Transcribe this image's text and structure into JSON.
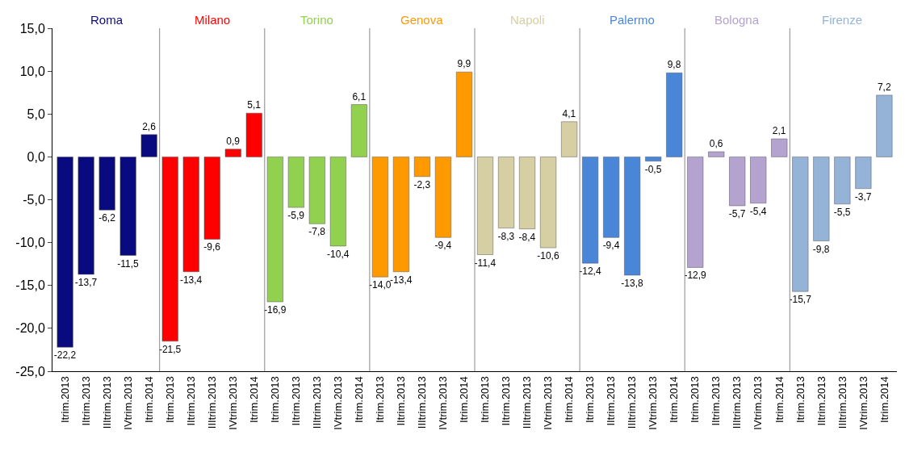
{
  "chart_data": {
    "type": "bar",
    "categories": [
      "Itrim.2013",
      "IItrim.2013",
      "IIItrim.2013",
      "IVtrim.2013",
      "Itrim.2014",
      "Itrim.2013",
      "IItrim.2013",
      "IIItrim.2013",
      "IVtrim.2013",
      "Itrim.2014",
      "Itrim.2013",
      "IItrim.2013",
      "IIItrim.2013",
      "IVtrim.2013",
      "Itrim.2014",
      "Itrim.2013",
      "IItrim.2013",
      "IIItrim.2013",
      "IVtrim.2013",
      "Itrim.2014",
      "Itrim.2013",
      "IItrim.2013",
      "IIItrim.2013",
      "IVtrim.2013",
      "Itrim.2014",
      "Itrim.2013",
      "IItrim.2013",
      "IIItrim.2013",
      "IVtrim.2013",
      "Itrim.2014",
      "Itrim.2013",
      "IItrim.2013",
      "IIItrim.2013",
      "IVtrim.2013",
      "Itrim.2014",
      "Itrim.2013",
      "IItrim.2013",
      "IIItrim.2013",
      "IVtrim.2013",
      "Itrim.2014"
    ],
    "series": [
      {
        "name": "Roma",
        "color": "#0a0a80",
        "values": [
          -22.2,
          -13.7,
          -6.2,
          -11.5,
          2.6,
          null,
          null,
          null,
          null,
          null,
          null,
          null,
          null,
          null,
          null,
          null,
          null,
          null,
          null,
          null,
          null,
          null,
          null,
          null,
          null,
          null,
          null,
          null,
          null,
          null,
          null,
          null,
          null,
          null,
          null,
          null,
          null,
          null,
          null,
          null
        ],
        "value_labels": [
          "-22,2",
          "-13,7",
          "-6,2",
          "-11,5",
          "2,6",
          null,
          null,
          null,
          null,
          null,
          null,
          null,
          null,
          null,
          null,
          null,
          null,
          null,
          null,
          null,
          null,
          null,
          null,
          null,
          null,
          null,
          null,
          null,
          null,
          null,
          null,
          null,
          null,
          null,
          null,
          null,
          null,
          null,
          null,
          null
        ]
      },
      {
        "name": "Milano",
        "color": "#ff0000",
        "values": [
          null,
          null,
          null,
          null,
          null,
          -21.5,
          -13.4,
          -9.6,
          0.9,
          5.1,
          null,
          null,
          null,
          null,
          null,
          null,
          null,
          null,
          null,
          null,
          null,
          null,
          null,
          null,
          null,
          null,
          null,
          null,
          null,
          null,
          null,
          null,
          null,
          null,
          null,
          null,
          null,
          null,
          null,
          null
        ],
        "value_labels": [
          null,
          null,
          null,
          null,
          null,
          "-21,5",
          "-13,4",
          "-9,6",
          "0,9",
          "5,1",
          null,
          null,
          null,
          null,
          null,
          null,
          null,
          null,
          null,
          null,
          null,
          null,
          null,
          null,
          null,
          null,
          null,
          null,
          null,
          null,
          null,
          null,
          null,
          null,
          null,
          null,
          null,
          null,
          null,
          null
        ]
      },
      {
        "name": "Torino",
        "color": "#92d050",
        "values": [
          null,
          null,
          null,
          null,
          null,
          null,
          null,
          null,
          null,
          null,
          -16.9,
          -5.9,
          -7.8,
          -10.4,
          6.1,
          null,
          null,
          null,
          null,
          null,
          null,
          null,
          null,
          null,
          null,
          null,
          null,
          null,
          null,
          null,
          null,
          null,
          null,
          null,
          null,
          null,
          null,
          null,
          null,
          null
        ],
        "value_labels": [
          null,
          null,
          null,
          null,
          null,
          null,
          null,
          null,
          null,
          null,
          "-16,9",
          "-5,9",
          "-7,8",
          "-10,4",
          "6,1",
          null,
          null,
          null,
          null,
          null,
          null,
          null,
          null,
          null,
          null,
          null,
          null,
          null,
          null,
          null,
          null,
          null,
          null,
          null,
          null,
          null,
          null,
          null,
          null,
          null
        ]
      },
      {
        "name": "Genova",
        "color": "#ff9900",
        "values": [
          null,
          null,
          null,
          null,
          null,
          null,
          null,
          null,
          null,
          null,
          null,
          null,
          null,
          null,
          null,
          -14.0,
          -13.4,
          -2.3,
          -9.4,
          9.9,
          null,
          null,
          null,
          null,
          null,
          null,
          null,
          null,
          null,
          null,
          null,
          null,
          null,
          null,
          null,
          null,
          null,
          null,
          null,
          null
        ],
        "value_labels": [
          null,
          null,
          null,
          null,
          null,
          null,
          null,
          null,
          null,
          null,
          null,
          null,
          null,
          null,
          null,
          "-14,0",
          "-13,4",
          "-2,3",
          "-9,4",
          "9,9",
          null,
          null,
          null,
          null,
          null,
          null,
          null,
          null,
          null,
          null,
          null,
          null,
          null,
          null,
          null,
          null,
          null,
          null,
          null,
          null
        ]
      },
      {
        "name": "Napoli",
        "color": "#d6cfa3",
        "values": [
          null,
          null,
          null,
          null,
          null,
          null,
          null,
          null,
          null,
          null,
          null,
          null,
          null,
          null,
          null,
          null,
          null,
          null,
          null,
          null,
          -11.4,
          -8.3,
          -8.4,
          -10.6,
          4.1,
          null,
          null,
          null,
          null,
          null,
          null,
          null,
          null,
          null,
          null,
          null,
          null,
          null,
          null,
          null
        ],
        "value_labels": [
          null,
          null,
          null,
          null,
          null,
          null,
          null,
          null,
          null,
          null,
          null,
          null,
          null,
          null,
          null,
          null,
          null,
          null,
          null,
          null,
          "-11,4",
          "-8,3",
          "-8,4",
          "-10,6",
          "4,1",
          null,
          null,
          null,
          null,
          null,
          null,
          null,
          null,
          null,
          null,
          null,
          null,
          null,
          null,
          null
        ]
      },
      {
        "name": "Palermo",
        "color": "#4a86d8",
        "values": [
          null,
          null,
          null,
          null,
          null,
          null,
          null,
          null,
          null,
          null,
          null,
          null,
          null,
          null,
          null,
          null,
          null,
          null,
          null,
          null,
          null,
          null,
          null,
          null,
          null,
          -12.4,
          -9.4,
          -13.8,
          -0.5,
          9.8,
          null,
          null,
          null,
          null,
          null,
          null,
          null,
          null,
          null,
          null
        ],
        "value_labels": [
          null,
          null,
          null,
          null,
          null,
          null,
          null,
          null,
          null,
          null,
          null,
          null,
          null,
          null,
          null,
          null,
          null,
          null,
          null,
          null,
          null,
          null,
          null,
          null,
          null,
          "-12,4",
          "-9,4",
          "-13,8",
          "-0,5",
          "9,8",
          null,
          null,
          null,
          null,
          null,
          null,
          null,
          null,
          null,
          null
        ]
      },
      {
        "name": "Bologna",
        "color": "#b4a2cf",
        "values": [
          null,
          null,
          null,
          null,
          null,
          null,
          null,
          null,
          null,
          null,
          null,
          null,
          null,
          null,
          null,
          null,
          null,
          null,
          null,
          null,
          null,
          null,
          null,
          null,
          null,
          null,
          null,
          null,
          null,
          null,
          -12.9,
          0.6,
          -5.7,
          -5.4,
          2.1,
          null,
          null,
          null,
          null,
          null
        ],
        "value_labels": [
          null,
          null,
          null,
          null,
          null,
          null,
          null,
          null,
          null,
          null,
          null,
          null,
          null,
          null,
          null,
          null,
          null,
          null,
          null,
          null,
          null,
          null,
          null,
          null,
          null,
          null,
          null,
          null,
          null,
          null,
          "-12,9",
          "0,6",
          "-5,7",
          "-5,4",
          "2,1",
          null,
          null,
          null,
          null,
          null
        ]
      },
      {
        "name": "Firenze",
        "color": "#95b3d7",
        "values": [
          null,
          null,
          null,
          null,
          null,
          null,
          null,
          null,
          null,
          null,
          null,
          null,
          null,
          null,
          null,
          null,
          null,
          null,
          null,
          null,
          null,
          null,
          null,
          null,
          null,
          null,
          null,
          null,
          null,
          null,
          null,
          null,
          null,
          null,
          null,
          -15.7,
          -9.8,
          -5.5,
          -3.7,
          7.2
        ],
        "value_labels": [
          null,
          null,
          null,
          null,
          null,
          null,
          null,
          null,
          null,
          null,
          null,
          null,
          null,
          null,
          null,
          null,
          null,
          null,
          null,
          null,
          null,
          null,
          null,
          null,
          null,
          null,
          null,
          null,
          null,
          null,
          null,
          null,
          null,
          null,
          null,
          "-15,7",
          "-9,8",
          "-5,5",
          "-3,7",
          "7,2"
        ]
      }
    ],
    "ylim": [
      -25,
      15
    ],
    "yticks": [
      {
        "value": -25,
        "label": "-25,0"
      },
      {
        "value": -20,
        "label": "-20,0"
      },
      {
        "value": -15,
        "label": "-15,0"
      },
      {
        "value": -10,
        "label": "-10,0"
      },
      {
        "value": -5,
        "label": "-5,0"
      },
      {
        "value": 0,
        "label": "0,0"
      },
      {
        "value": 5,
        "label": "5,0"
      },
      {
        "value": 10,
        "label": "10,0"
      },
      {
        "value": 15,
        "label": "15,0"
      }
    ],
    "legend": false
  }
}
